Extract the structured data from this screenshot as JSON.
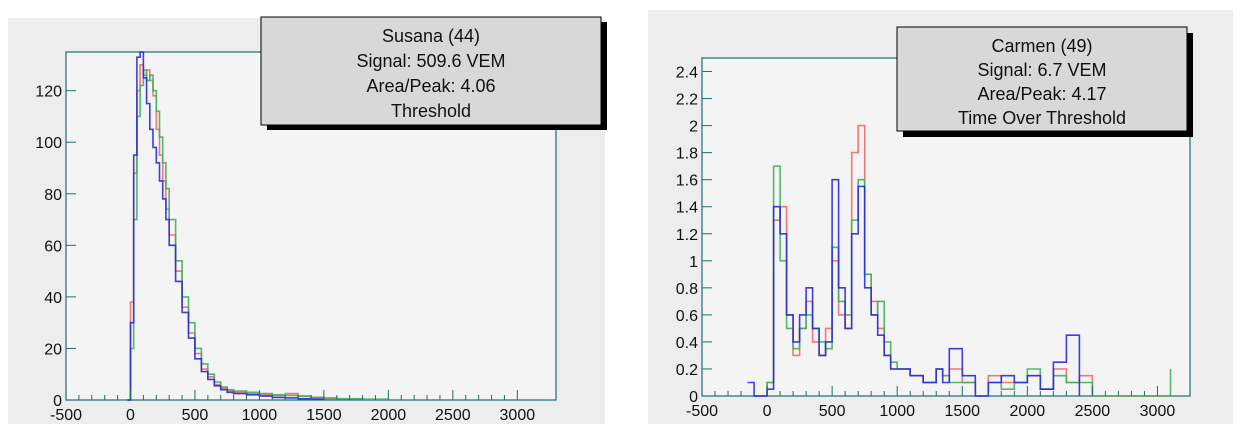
{
  "colors": {
    "frame_bg": "#ededed",
    "plot_bg": "#f4f4f4",
    "axis": "#1b6f6f",
    "box_bg": "#d8d8d8",
    "box_border": "#000000",
    "red": "#ef6a6a",
    "green": "#3fb05a",
    "blue": "#2a2ad8"
  },
  "chart_data": [
    {
      "type": "histogram",
      "info": {
        "line1": "Susana (44)",
        "line2": "Signal: 509.6 VEM",
        "line3": "Area/Peak: 4.06",
        "line4": "Threshold"
      },
      "xlim": [
        -500,
        3300
      ],
      "ylim": [
        0,
        135
      ],
      "xticks": [
        -500,
        0,
        500,
        1000,
        1500,
        2000,
        2500,
        3000
      ],
      "yticks": [
        0,
        20,
        40,
        60,
        80,
        100,
        120
      ],
      "ytick_labels": [
        "0",
        "20",
        "40",
        "60",
        "80",
        "100",
        "120"
      ],
      "grid": false,
      "series": [
        {
          "color": "red",
          "x": [
            -25,
            0,
            25,
            50,
            75,
            100,
            125,
            150,
            175,
            200,
            225,
            250,
            275,
            300,
            350,
            400,
            450,
            500,
            550,
            600,
            650,
            700,
            750,
            800,
            900,
            1000,
            1100,
            1200,
            1300,
            1400,
            1500,
            1600
          ],
          "y": [
            0,
            38,
            88,
            120,
            130,
            126,
            128,
            124,
            118,
            105,
            95,
            85,
            74,
            64,
            50,
            36,
            26,
            18,
            12,
            9,
            6,
            4.5,
            3.5,
            3,
            2.5,
            2,
            1.8,
            2.5,
            1.5,
            1,
            0.5,
            0
          ]
        },
        {
          "color": "green",
          "x": [
            -25,
            0,
            25,
            50,
            75,
            100,
            125,
            150,
            175,
            200,
            225,
            250,
            275,
            300,
            350,
            400,
            450,
            500,
            550,
            600,
            650,
            700,
            750,
            800,
            900,
            1000,
            1100,
            1200,
            1300,
            1400,
            1500,
            1600,
            1800,
            2000
          ],
          "y": [
            0,
            20,
            70,
            110,
            122,
            128,
            124,
            126,
            120,
            112,
            102,
            92,
            82,
            70,
            54,
            40,
            30,
            20,
            14,
            10,
            7,
            5,
            4,
            3.5,
            3,
            2.5,
            2,
            1.8,
            1.5,
            1,
            0.8,
            0.5,
            0.3,
            0
          ]
        },
        {
          "color": "blue",
          "x": [
            -25,
            0,
            25,
            50,
            75,
            100,
            125,
            150,
            175,
            200,
            225,
            250,
            275,
            300,
            350,
            400,
            450,
            500,
            550,
            600,
            650,
            700,
            750,
            800,
            900,
            1000,
            1100,
            1200,
            1300,
            1400,
            1500
          ],
          "y": [
            0,
            30,
            95,
            133,
            135,
            125,
            115,
            105,
            98,
            92,
            85,
            78,
            70,
            60,
            46,
            34,
            24,
            16,
            11,
            8,
            5.5,
            4,
            3,
            2.5,
            2,
            1.5,
            1,
            0.8,
            0.5,
            0.3,
            0
          ]
        }
      ]
    },
    {
      "type": "histogram",
      "info": {
        "line1": "Carmen (49)",
        "line2": "Signal: 6.7 VEM",
        "line3": "Area/Peak: 4.17",
        "line4": "Time Over Threshold"
      },
      "xlim": [
        -500,
        3250
      ],
      "ylim": [
        0,
        2.5
      ],
      "xticks": [
        -500,
        0,
        500,
        1000,
        1500,
        2000,
        2500,
        3000
      ],
      "yticks": [
        0,
        0.2,
        0.4,
        0.6,
        0.8,
        1,
        1.2,
        1.4,
        1.6,
        1.8,
        2,
        2.2,
        2.4
      ],
      "ytick_labels": [
        "0",
        "0.2",
        "0.4",
        "0.6",
        "0.8",
        "1",
        "1.2",
        "1.4",
        "1.6",
        "1.8",
        "2",
        "2.2",
        "2.4"
      ],
      "grid": false,
      "series": [
        {
          "color": "red",
          "x": [
            -100,
            0,
            50,
            100,
            150,
            200,
            250,
            300,
            350,
            400,
            450,
            500,
            550,
            600,
            650,
            700,
            750,
            800,
            850,
            900,
            950,
            1000,
            1100,
            1200,
            1300,
            1350,
            1400,
            1500,
            1600,
            1700,
            1800,
            1900,
            2000,
            2100,
            2200,
            2300,
            2400,
            2500,
            2600,
            2700,
            2800,
            2900,
            3000,
            3100
          ],
          "y": [
            0,
            0.1,
            1.3,
            1.4,
            0.6,
            0.3,
            0.5,
            0.7,
            0.4,
            0.3,
            0.5,
            1.0,
            0.6,
            0.5,
            1.8,
            2.0,
            0.9,
            0.7,
            0.5,
            0.3,
            0.2,
            0.2,
            0.15,
            0.1,
            0.2,
            0.15,
            0.2,
            0.1,
            0,
            0.15,
            0.1,
            0.1,
            0.15,
            0.05,
            0.2,
            0.1,
            0.15,
            0,
            0,
            0,
            0,
            0,
            0,
            0
          ]
        },
        {
          "color": "green",
          "x": [
            -100,
            0,
            50,
            100,
            150,
            200,
            250,
            300,
            350,
            400,
            450,
            500,
            550,
            600,
            650,
            700,
            750,
            800,
            850,
            900,
            950,
            1000,
            1100,
            1200,
            1300,
            1350,
            1400,
            1500,
            1600,
            1700,
            1800,
            1900,
            2000,
            2100,
            2200,
            2300,
            2400,
            2500,
            2600,
            2700,
            2800,
            2900,
            3000,
            3100
          ],
          "y": [
            0,
            0.1,
            1.7,
            1.0,
            0.5,
            0.35,
            0.5,
            0.6,
            0.5,
            0.4,
            0.35,
            1.1,
            0.7,
            0.6,
            1.3,
            1.6,
            0.9,
            0.6,
            0.7,
            0.4,
            0.25,
            0.2,
            0.15,
            0.1,
            0.2,
            0.15,
            0.1,
            0.1,
            0,
            0.1,
            0.05,
            0.1,
            0.2,
            0.05,
            0.15,
            0.1,
            0.1,
            0,
            0,
            0,
            0,
            0,
            0,
            0.2
          ]
        },
        {
          "color": "blue",
          "x": [
            -150,
            -100,
            0,
            50,
            100,
            150,
            200,
            250,
            300,
            350,
            400,
            450,
            500,
            550,
            600,
            650,
            700,
            750,
            800,
            850,
            900,
            950,
            1000,
            1100,
            1200,
            1300,
            1350,
            1400,
            1500,
            1600,
            1700,
            1800,
            1900,
            2000,
            2100,
            2200,
            2300,
            2400
          ],
          "y": [
            0.1,
            0,
            0.05,
            1.4,
            1.2,
            0.6,
            0.4,
            0.6,
            0.8,
            0.5,
            0.3,
            0.4,
            1.6,
            0.8,
            0.5,
            1.2,
            1.55,
            0.8,
            0.6,
            0.45,
            0.3,
            0.2,
            0.2,
            0.15,
            0.1,
            0.2,
            0.1,
            0.35,
            0.15,
            0,
            0.1,
            0.15,
            0.1,
            0.15,
            0.05,
            0.25,
            0.45,
            0
          ]
        }
      ]
    }
  ]
}
